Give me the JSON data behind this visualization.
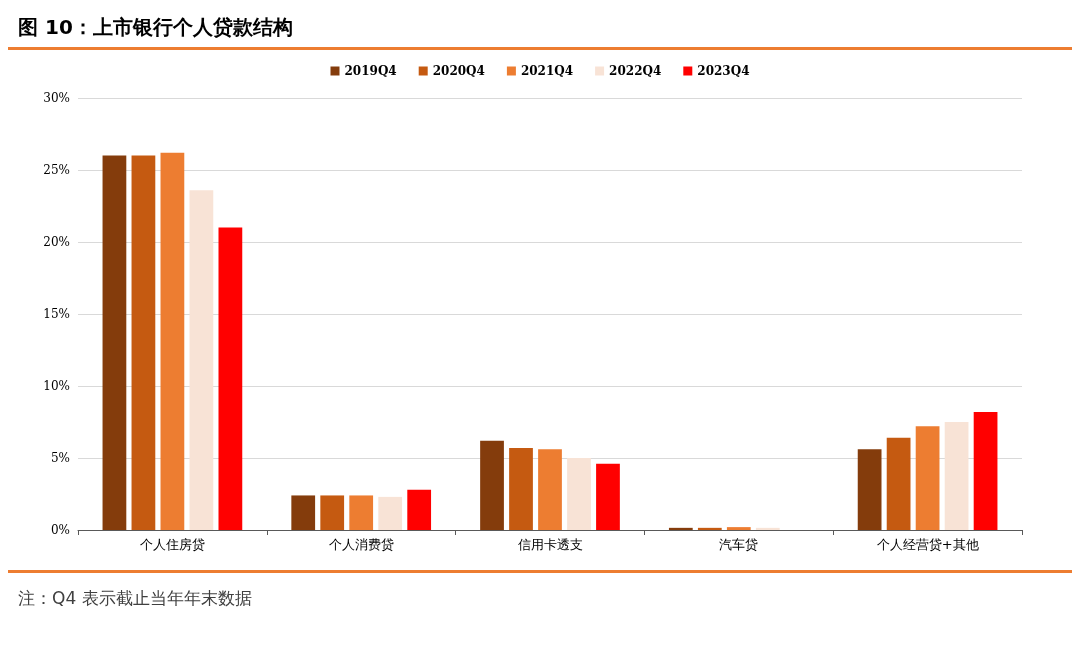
{
  "chart_data": {
    "type": "bar",
    "title": "图 10：上市银行个人贷款结构",
    "categories": [
      "个人住房贷",
      "个人消费贷",
      "信用卡透支",
      "汽车贷",
      "个人经营贷+其他"
    ],
    "series": [
      {
        "name": "2019Q4",
        "color": "#843c0c",
        "values": [
          26.0,
          2.4,
          6.2,
          0.15,
          5.6
        ]
      },
      {
        "name": "2020Q4",
        "color": "#c55a11",
        "values": [
          26.0,
          2.4,
          5.7,
          0.15,
          6.4
        ]
      },
      {
        "name": "2021Q4",
        "color": "#ed7d31",
        "values": [
          26.2,
          2.4,
          5.6,
          0.2,
          7.2
        ]
      },
      {
        "name": "2022Q4",
        "color": "#f8e3d6",
        "values": [
          23.6,
          2.3,
          5.0,
          0.15,
          7.5
        ]
      },
      {
        "name": "2023Q4",
        "color": "#ff0000",
        "values": [
          21.0,
          2.8,
          4.6,
          0,
          8.2
        ]
      }
    ],
    "ylim": [
      0,
      30
    ],
    "yticks": [
      {
        "value": 0,
        "label": "0%"
      },
      {
        "value": 5,
        "label": "5%"
      },
      {
        "value": 10,
        "label": "10%"
      },
      {
        "value": 15,
        "label": "15%"
      },
      {
        "value": 20,
        "label": "20%"
      },
      {
        "value": 25,
        "label": "25%"
      },
      {
        "value": 30,
        "label": "30%"
      }
    ],
    "grid": "y",
    "legend": "top",
    "annotations": [
      "注：Q4 表示截止当年年末数据"
    ]
  }
}
